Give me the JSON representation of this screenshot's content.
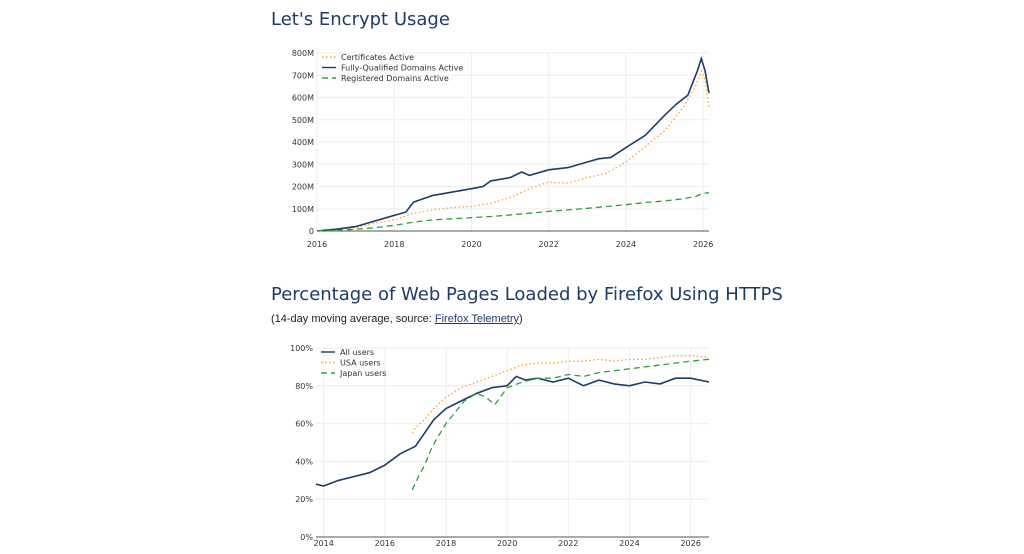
{
  "sections": {
    "le": {
      "title": "Let's Encrypt Usage"
    },
    "ff": {
      "title": "Percentage of Web Pages Loaded by Firefox Using HTTPS",
      "subtitle_prefix": "(14-day moving average, source: ",
      "subtitle_link": "Firefox Telemetry",
      "subtitle_suffix": ")"
    }
  },
  "colors": {
    "navy": "#1d3c66",
    "orange": "#f5a623",
    "green": "#2e9e3a",
    "grid": "#eeeeee"
  },
  "chart_data": [
    {
      "type": "line",
      "title": "Let's Encrypt Usage",
      "xlabel": "",
      "ylabel": "",
      "xlim": [
        2016,
        2026.15
      ],
      "ylim": [
        0,
        800
      ],
      "x_ticks": [
        2016,
        2018,
        2020,
        2022,
        2024,
        2026
      ],
      "x_tick_labels": [
        "2016",
        "2018",
        "2020",
        "2022",
        "2024",
        "2026"
      ],
      "y_ticks": [
        0,
        100,
        200,
        300,
        400,
        500,
        600,
        700,
        800
      ],
      "y_tick_labels": [
        "0",
        "100M",
        "200M",
        "300M",
        "400M",
        "500M",
        "600M",
        "700M",
        "800M"
      ],
      "grid": true,
      "legend": "top-left",
      "series": [
        {
          "name": "Certificates Active",
          "style": "dotted",
          "color": "#f5a623",
          "x": [
            2016,
            2016.5,
            2017,
            2017.5,
            2018,
            2018.5,
            2019,
            2019.5,
            2020,
            2020.5,
            2021,
            2021.5,
            2022,
            2022.5,
            2023,
            2023.5,
            2024,
            2024.5,
            2025,
            2025.5,
            2025.8,
            2025.95,
            2026.05,
            2026.15
          ],
          "y": [
            0,
            5,
            15,
            35,
            50,
            80,
            95,
            105,
            110,
            125,
            150,
            190,
            220,
            215,
            240,
            260,
            310,
            380,
            450,
            560,
            650,
            720,
            680,
            550
          ]
        },
        {
          "name": "Fully-Qualified Domains Active",
          "style": "solid",
          "color": "#1d3c66",
          "x": [
            2016,
            2016.5,
            2017,
            2017.5,
            2018,
            2018.3,
            2018.5,
            2019,
            2019.5,
            2020,
            2020.3,
            2020.5,
            2021,
            2021.3,
            2021.5,
            2022,
            2022.5,
            2023,
            2023.3,
            2023.6,
            2024,
            2024.5,
            2025,
            2025.3,
            2025.6,
            2025.85,
            2025.95,
            2026.05,
            2026.15
          ],
          "y": [
            0,
            8,
            20,
            45,
            70,
            85,
            130,
            160,
            175,
            190,
            200,
            225,
            240,
            265,
            250,
            275,
            285,
            310,
            325,
            330,
            375,
            430,
            520,
            570,
            610,
            720,
            775,
            720,
            620
          ]
        },
        {
          "name": "Registered Domains Active",
          "style": "dashed",
          "color": "#2e9e3a",
          "x": [
            2016,
            2016.5,
            2017,
            2017.5,
            2018,
            2018.5,
            2019,
            2019.5,
            2020,
            2020.5,
            2021,
            2021.5,
            2022,
            2022.5,
            2023,
            2023.5,
            2024,
            2024.5,
            2025,
            2025.5,
            2025.8,
            2026,
            2026.15
          ],
          "y": [
            0,
            3,
            8,
            15,
            25,
            40,
            50,
            55,
            60,
            65,
            72,
            80,
            88,
            95,
            102,
            110,
            118,
            128,
            135,
            145,
            155,
            170,
            172
          ]
        }
      ]
    },
    {
      "type": "line",
      "title": "Percentage of Web Pages Loaded by Firefox Using HTTPS",
      "subtitle": "(14-day moving average, source: Firefox Telemetry)",
      "xlabel": "",
      "ylabel": "",
      "xlim": [
        2013.75,
        2026.6
      ],
      "ylim": [
        0,
        100
      ],
      "x_ticks": [
        2014,
        2016,
        2018,
        2020,
        2022,
        2024,
        2026
      ],
      "x_tick_labels": [
        "2014",
        "2016",
        "2018",
        "2020",
        "2022",
        "2024",
        "2026"
      ],
      "y_ticks": [
        0,
        20,
        40,
        60,
        80,
        100
      ],
      "y_tick_labels": [
        "0%",
        "20%",
        "40%",
        "60%",
        "80%",
        "100%"
      ],
      "grid": true,
      "legend": "top-left",
      "series": [
        {
          "name": "All users",
          "style": "solid",
          "color": "#1d3c66",
          "x": [
            2013.75,
            2014,
            2014.5,
            2015,
            2015.5,
            2016,
            2016.5,
            2017,
            2017.3,
            2017.6,
            2018,
            2018.5,
            2019,
            2019.5,
            2020,
            2020.3,
            2020.6,
            2021,
            2021.5,
            2022,
            2022.5,
            2023,
            2023.5,
            2024,
            2024.5,
            2025,
            2025.5,
            2026,
            2026.3,
            2026.6
          ],
          "y": [
            28,
            27,
            30,
            32,
            34,
            38,
            44,
            48,
            55,
            62,
            68,
            72,
            76,
            79,
            80,
            85,
            83,
            84,
            82,
            84,
            80,
            83,
            81,
            80,
            82,
            81,
            84,
            84,
            83,
            82
          ]
        },
        {
          "name": "USA users",
          "style": "dotted",
          "color": "#f5a623",
          "x": [
            2016.9,
            2017,
            2017.3,
            2017.6,
            2018,
            2018.5,
            2019,
            2019.5,
            2020,
            2020.5,
            2021,
            2021.5,
            2022,
            2022.5,
            2023,
            2023.5,
            2024,
            2024.5,
            2025,
            2025.5,
            2026,
            2026.6
          ],
          "y": [
            55,
            58,
            62,
            68,
            74,
            79,
            82,
            85,
            88,
            91,
            92,
            92,
            93,
            93,
            94,
            93,
            94,
            94,
            95,
            96,
            96,
            95
          ]
        },
        {
          "name": "Japan users",
          "style": "dashed",
          "color": "#2e9e3a",
          "x": [
            2016.9,
            2017.1,
            2017.3,
            2017.5,
            2017.7,
            2018,
            2018.3,
            2018.6,
            2019,
            2019.3,
            2019.6,
            2020,
            2020.5,
            2021,
            2021.5,
            2022,
            2022.5,
            2023,
            2023.5,
            2024,
            2024.5,
            2025,
            2025.5,
            2026,
            2026.6
          ],
          "y": [
            25,
            32,
            38,
            46,
            52,
            60,
            66,
            72,
            76,
            74,
            70,
            79,
            82,
            84,
            84,
            86,
            85,
            87,
            88,
            89,
            90,
            91,
            92,
            93,
            94
          ]
        }
      ]
    }
  ]
}
